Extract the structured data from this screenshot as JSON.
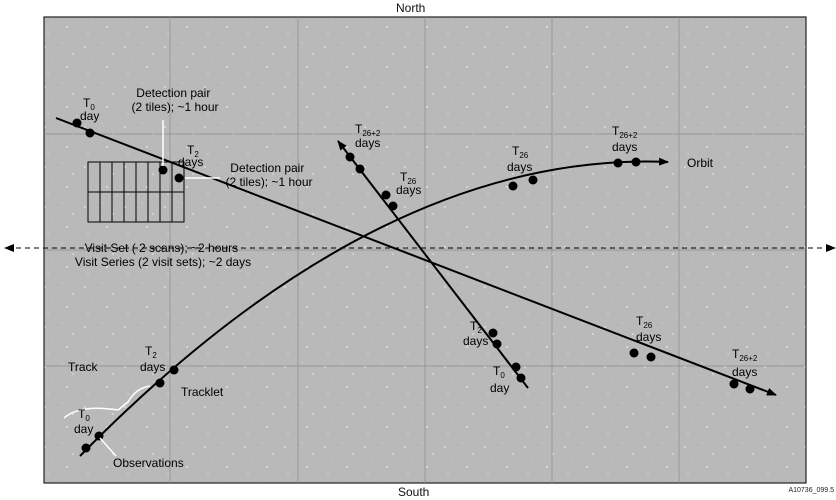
{
  "compass": {
    "north": "North",
    "south": "South"
  },
  "figure_id": "A10736_099.5",
  "colors": {
    "field_bg": "#b9b9b9",
    "line": "#000000",
    "grid": "#8c8c8c"
  },
  "labels": {
    "t0_day_upper": {
      "sym": "T",
      "sub": "0",
      "unit": "day"
    },
    "t0_day_lower": {
      "sym": "T",
      "sub": "0",
      "unit": "day"
    },
    "t0_day_mid": {
      "sym": "T",
      "sub": "0",
      "unit": "day"
    },
    "t2_days_upper": {
      "sym": "T",
      "sub": "2",
      "unit": "days"
    },
    "t2_days_lower": {
      "sym": "T",
      "sub": "2",
      "unit": "days"
    },
    "t2_days_mid": {
      "sym": "T",
      "sub": "2",
      "unit": "days"
    },
    "t26_days_orbit": {
      "sym": "T",
      "sub": "26",
      "unit": "days"
    },
    "t26_days_mid": {
      "sym": "T",
      "sub": "26",
      "unit": "days"
    },
    "t26_days_right": {
      "sym": "T",
      "sub": "26",
      "unit": "days"
    },
    "t262_days_orbit": {
      "sym": "T",
      "sub": "26+2",
      "unit": "days"
    },
    "t262_days_mid": {
      "sym": "T",
      "sub": "26+2",
      "unit": "days"
    },
    "t262_days_right": {
      "sym": "T",
      "sub": "26+2",
      "unit": "days"
    },
    "detection_pair_1": [
      "Detection pair",
      "(2 tiles); ~1 hour"
    ],
    "detection_pair_2": [
      "Detection pair",
      "(2 tiles); ~1 hour"
    ],
    "visit": [
      "Visit Set ( 2 scans); ~2 hours",
      "Visit Series (2 visit sets); ~2 days"
    ],
    "orbit": "Orbit",
    "track": "Track",
    "tracklet": "Tracklet",
    "observations": "Observations"
  }
}
